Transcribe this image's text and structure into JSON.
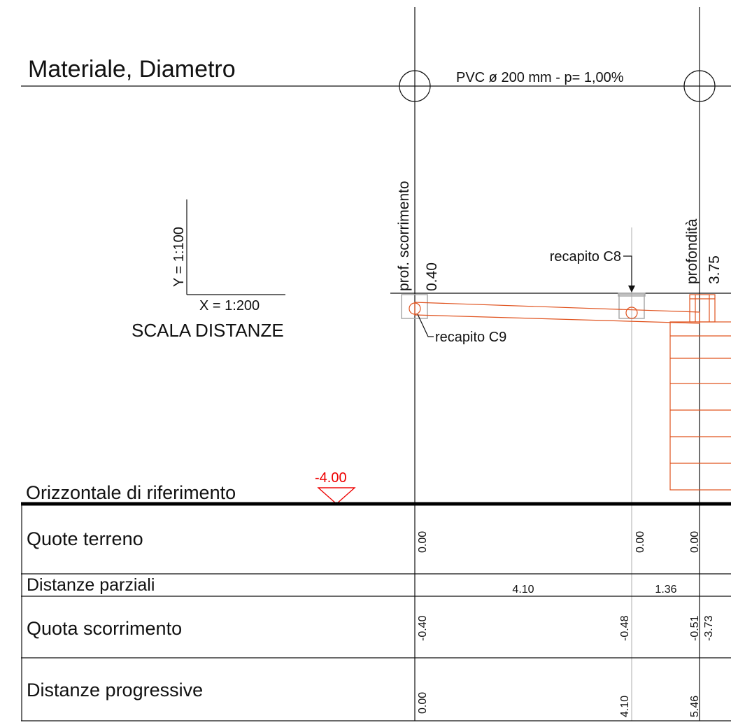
{
  "header": {
    "title": "Materiale, Diametro",
    "pipe": "PVC ø 200 mm - p= 1,00%"
  },
  "scale": {
    "y": "Y = 1:100",
    "x": "X = 1:200",
    "label": "SCALA DISTANZE"
  },
  "profile": {
    "prof_label": "prof. scorrimento",
    "prof_value": "0.40",
    "depth_label": "profondità",
    "depth_value": "3.75",
    "node_c8": "recapito C8",
    "node_c9": "recapito C9"
  },
  "reference": {
    "value": "-4.00",
    "label": "Orizzontale di riferimento"
  },
  "table": {
    "rows": [
      {
        "label": "Quote terreno",
        "values": [
          "0.00",
          "0.00",
          "0.00"
        ]
      },
      {
        "label": "Distanze parziali",
        "values": [
          "4.10",
          "1.36"
        ]
      },
      {
        "label": "Quota scorrimento",
        "values": [
          "-0.40",
          "-0.48",
          "-0.51",
          "-3.73"
        ]
      },
      {
        "label": "Distanze progressive",
        "values": [
          "0.00",
          "4.10",
          "5.46"
        ]
      }
    ]
  }
}
